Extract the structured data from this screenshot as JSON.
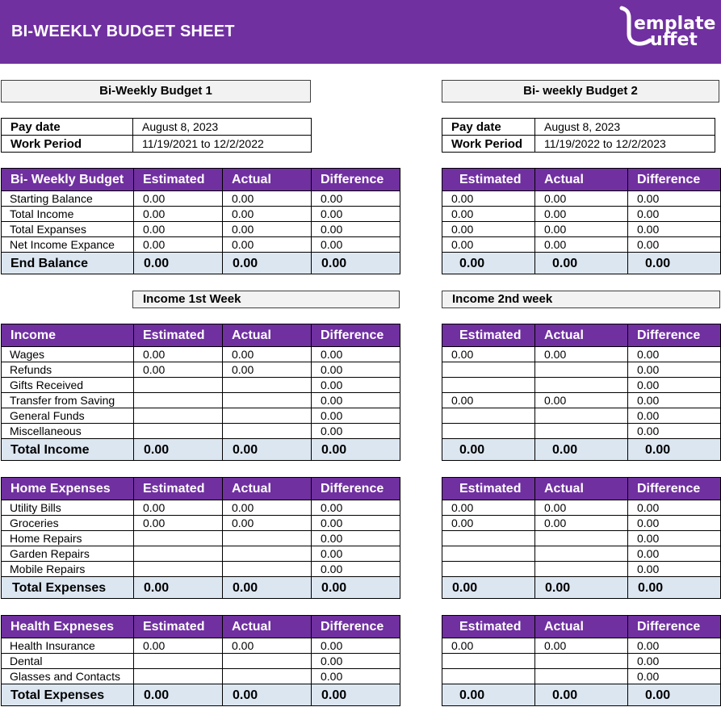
{
  "header": {
    "title": "BI-WEEKLY BUDGET SHEET",
    "logo_text_top": "emplate",
    "logo_text_bottom": "uffet"
  },
  "left_title": "Bi-Weekly Budget   1",
  "right_title": "Bi- weekly Budget 2",
  "pay_left": {
    "pay_date_label": "Pay date",
    "pay_date": "August 8, 2023",
    "work_period_label": "Work Period",
    "work_period": "11/19/2021 to 12/2/2022"
  },
  "pay_right": {
    "pay_date_label": "Pay date",
    "pay_date": "August 8, 2023",
    "work_period_label": "Work Period",
    "work_period": "11/19/2022 to 12/2/2023"
  },
  "columns": {
    "estimated": "Estimated",
    "actual": "Actual",
    "difference": "Difference"
  },
  "summary_left": {
    "title": "Bi- Weekly Budget",
    "rows": [
      {
        "label": "Starting Balance",
        "est": "0.00",
        "act": "0.00",
        "diff": "0.00"
      },
      {
        "label": "Total Income",
        "est": "0.00",
        "act": "0.00",
        "diff": "0.00"
      },
      {
        "label": "Total Expanses",
        "est": "0.00",
        "act": "0.00",
        "diff": "0.00"
      },
      {
        "label": "Net Income Expance",
        "est": "0.00",
        "act": "0.00",
        "diff": "0.00"
      }
    ],
    "total": {
      "label": "End Balance",
      "est": "0.00",
      "act": "0.00",
      "diff": "0.00"
    }
  },
  "summary_right": {
    "rows": [
      {
        "est": "0.00",
        "act": "0.00",
        "diff": "0.00"
      },
      {
        "est": "0.00",
        "act": "0.00",
        "diff": "0.00"
      },
      {
        "est": "0.00",
        "act": "0.00",
        "diff": "0.00"
      },
      {
        "est": "0.00",
        "act": "0.00",
        "diff": "0.00"
      }
    ],
    "total": {
      "est": "0.00",
      "act": "0.00",
      "diff": "0.00"
    }
  },
  "income_week1_title": "Income 1st Week",
  "income_week2_title": "Income 2nd week",
  "income_left": {
    "title": "Income",
    "rows": [
      {
        "label": "Wages",
        "est": "0.00",
        "act": "0.00",
        "diff": "0.00"
      },
      {
        "label": "Refunds",
        "est": "0.00",
        "act": "0.00",
        "diff": "0.00"
      },
      {
        "label": "Gifts Received",
        "est": "",
        "act": "",
        "diff": "0.00"
      },
      {
        "label": "Transfer from Saving",
        "est": "",
        "act": "",
        "diff": "0.00"
      },
      {
        "label": "General Funds",
        "est": "",
        "act": "",
        "diff": "0.00"
      },
      {
        "label": "Miscellaneous",
        "est": "",
        "act": "",
        "diff": "0.00"
      }
    ],
    "total": {
      "label": "Total Income",
      "est": "0.00",
      "act": "0.00",
      "diff": "0.00"
    }
  },
  "income_right": {
    "rows": [
      {
        "est": "0.00",
        "act": "0.00",
        "diff": "0.00"
      },
      {
        "est": "",
        "act": "",
        "diff": "0.00"
      },
      {
        "est": "",
        "act": "",
        "diff": "0.00"
      },
      {
        "est": "0.00",
        "act": "0.00",
        "diff": "0.00"
      },
      {
        "est": "",
        "act": "",
        "diff": "0.00"
      },
      {
        "est": "",
        "act": "",
        "diff": "0.00"
      }
    ],
    "total": {
      "est": "0.00",
      "act": "0.00",
      "diff": "0.00"
    }
  },
  "home_left": {
    "title": "Home Expenses",
    "rows": [
      {
        "label": "Utility Bills",
        "est": "0.00",
        "act": "0.00",
        "diff": "0.00"
      },
      {
        "label": "Groceries",
        "est": "0.00",
        "act": "0.00",
        "diff": "0.00"
      },
      {
        "label": "Home Repairs",
        "est": "",
        "act": "",
        "diff": "0.00"
      },
      {
        "label": "Garden Repairs",
        "est": "",
        "act": "",
        "diff": "0.00"
      },
      {
        "label": "Mobile Repairs",
        "est": "",
        "act": "",
        "diff": "0.00"
      }
    ],
    "total": {
      "label": "Total Expenses",
      "est": "0.00",
      "act": "0.00",
      "diff": "0.00"
    }
  },
  "home_right": {
    "rows": [
      {
        "est": "0.00",
        "act": "0.00",
        "diff": "0.00"
      },
      {
        "est": "0.00",
        "act": "0.00",
        "diff": "0.00"
      },
      {
        "est": "",
        "act": "",
        "diff": "0.00"
      },
      {
        "est": "",
        "act": "",
        "diff": "0.00"
      },
      {
        "est": "",
        "act": "",
        "diff": "0.00"
      }
    ],
    "total": {
      "est": "0.00",
      "act": "0.00",
      "diff": "0.00"
    }
  },
  "health_left": {
    "title": "Health Expneses",
    "rows": [
      {
        "label": "Health Insurance",
        "est": "0.00",
        "act": "0.00",
        "diff": "0.00"
      },
      {
        "label": "Dental",
        "est": "",
        "act": "",
        "diff": "0.00"
      },
      {
        "label": "Glasses and Contacts",
        "est": "",
        "act": "",
        "diff": "0.00"
      }
    ],
    "total": {
      "label": "Total Expenses",
      "est": "0.00",
      "act": "0.00",
      "diff": "0.00"
    }
  },
  "health_right": {
    "rows": [
      {
        "est": "0.00",
        "act": "0.00",
        "diff": "0.00"
      },
      {
        "est": "",
        "act": "",
        "diff": "0.00"
      },
      {
        "est": "",
        "act": "",
        "diff": "0.00"
      }
    ],
    "total": {
      "est": "0.00",
      "act": "0.00",
      "diff": "0.00"
    }
  },
  "colors": {
    "brand": "#7030a0",
    "total_fill": "#dce6f1",
    "header_fill": "#f2f2f2"
  }
}
